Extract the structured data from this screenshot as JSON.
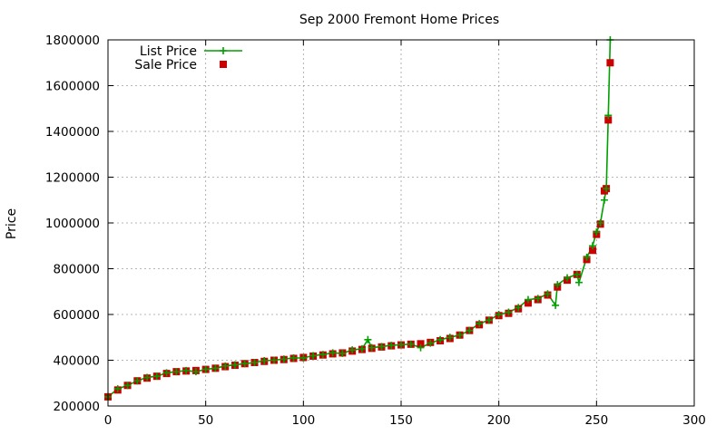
{
  "chart_data": {
    "type": "line",
    "title": "Sep 2000 Fremont Home Prices",
    "xlabel": "",
    "ylabel": "Price",
    "xlim": [
      0,
      300
    ],
    "ylim": [
      200000,
      1800000
    ],
    "x_ticks": [
      0,
      50,
      100,
      150,
      200,
      250,
      300
    ],
    "y_ticks": [
      200000,
      400000,
      600000,
      800000,
      1000000,
      1200000,
      1400000,
      1600000,
      1800000
    ],
    "grid": true,
    "legend_position": "top-left",
    "series": [
      {
        "name": "List Price",
        "style": "line-with-plus-markers",
        "color": "#00a000",
        "x": [
          0,
          5,
          10,
          15,
          20,
          25,
          30,
          35,
          40,
          45,
          50,
          55,
          60,
          65,
          70,
          75,
          80,
          85,
          90,
          95,
          100,
          105,
          110,
          115,
          120,
          125,
          130,
          133,
          135,
          140,
          145,
          150,
          155,
          160,
          165,
          170,
          175,
          180,
          185,
          190,
          195,
          200,
          205,
          210,
          215,
          220,
          225,
          229,
          230,
          235,
          240,
          241,
          245,
          248,
          250,
          252,
          254,
          255,
          256,
          257
        ],
        "y": [
          240000,
          275000,
          290000,
          310000,
          325000,
          330000,
          345000,
          350000,
          355000,
          350000,
          360000,
          365000,
          375000,
          380000,
          385000,
          390000,
          398000,
          400000,
          405000,
          410000,
          410000,
          420000,
          425000,
          432000,
          430000,
          445000,
          450000,
          490000,
          455000,
          460000,
          465000,
          468000,
          470000,
          455000,
          475000,
          490000,
          500000,
          510000,
          530000,
          560000,
          575000,
          600000,
          610000,
          630000,
          665000,
          670000,
          690000,
          640000,
          730000,
          760000,
          775000,
          740000,
          850000,
          900000,
          960000,
          1000000,
          1100000,
          1150000,
          1470000,
          1800000
        ]
      },
      {
        "name": "Sale Price",
        "style": "square-markers",
        "color": "#cc0000",
        "x": [
          0,
          5,
          10,
          15,
          20,
          25,
          30,
          35,
          40,
          45,
          50,
          55,
          60,
          65,
          70,
          75,
          80,
          85,
          90,
          95,
          100,
          105,
          110,
          115,
          120,
          125,
          130,
          135,
          140,
          145,
          150,
          155,
          160,
          165,
          170,
          175,
          180,
          185,
          190,
          195,
          200,
          205,
          210,
          215,
          220,
          225,
          230,
          235,
          240,
          245,
          248,
          250,
          252,
          254,
          255,
          256,
          257
        ],
        "y": [
          240000,
          270000,
          290000,
          310000,
          322000,
          330000,
          342000,
          350000,
          353000,
          355000,
          360000,
          365000,
          372000,
          378000,
          385000,
          390000,
          395000,
          400000,
          403000,
          408000,
          412000,
          418000,
          423000,
          428000,
          432000,
          440000,
          447000,
          452000,
          458000,
          463000,
          467000,
          470000,
          472000,
          478000,
          485000,
          495000,
          510000,
          530000,
          555000,
          575000,
          595000,
          605000,
          625000,
          650000,
          665000,
          685000,
          720000,
          750000,
          775000,
          840000,
          880000,
          950000,
          995000,
          1140000,
          1150000,
          1450000,
          1700000
        ]
      }
    ]
  }
}
